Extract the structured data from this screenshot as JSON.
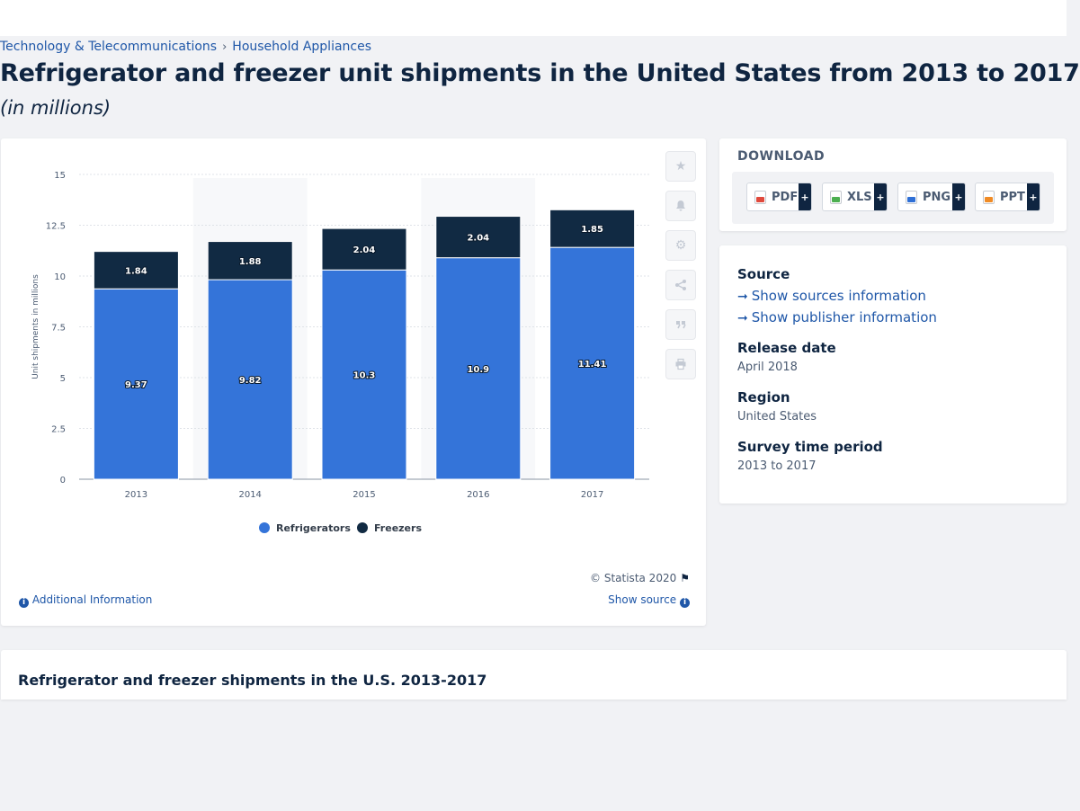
{
  "breadcrumb": {
    "category": "Technology & Telecommunications",
    "separator": "›",
    "subcategory": "Household Appliances"
  },
  "page": {
    "title": "Refrigerator and freezer unit shipments in the United States from 2013 to 2017",
    "subtitle": "(in millions)"
  },
  "chart_data": {
    "type": "bar",
    "stacked": true,
    "categories": [
      "2013",
      "2014",
      "2015",
      "2016",
      "2017"
    ],
    "series": [
      {
        "name": "Refrigerators",
        "color": "#3474d9",
        "values": [
          9.37,
          9.82,
          10.3,
          10.9,
          11.41
        ],
        "labels": [
          "9.37",
          "9.82",
          "10.3",
          "10.9",
          "11.41"
        ]
      },
      {
        "name": "Freezers",
        "color": "#112a43",
        "values": [
          1.84,
          1.88,
          2.04,
          2.04,
          1.85
        ],
        "labels": [
          "1.84",
          "1.88",
          "2.04",
          "2.04",
          "1.85"
        ]
      }
    ],
    "ylabel": "Unit shipments in millions",
    "ylim": [
      0,
      15
    ],
    "yticks": [
      0,
      2.5,
      5,
      7.5,
      10,
      12.5,
      15
    ],
    "ytick_labels": [
      "0",
      "2.5",
      "5",
      "7.5",
      "10",
      "12.5",
      "15"
    ],
    "grid": true,
    "legend_position": "bottom-center"
  },
  "chart_footer": {
    "copyright": "© Statista 2020",
    "additional_info": "Additional Information",
    "show_source": "Show source"
  },
  "tools": [
    "star-icon",
    "bell-icon",
    "gear-icon",
    "share-icon",
    "quote-icon",
    "print-icon"
  ],
  "download": {
    "title": "DOWNLOAD",
    "buttons": [
      {
        "label": "PDF",
        "plus": "+"
      },
      {
        "label": "XLS",
        "plus": "+"
      },
      {
        "label": "PNG",
        "plus": "+"
      },
      {
        "label": "PPT",
        "plus": "+"
      }
    ]
  },
  "source_info": {
    "source_label": "Source",
    "show_sources": "Show sources information",
    "show_publisher": "Show publisher information",
    "release_label": "Release date",
    "release_value": "April 2018",
    "region_label": "Region",
    "region_value": "United States",
    "period_label": "Survey time period",
    "period_value": "2013 to 2017"
  },
  "related": {
    "title": "Refrigerator and freezer shipments in the U.S. 2013-2017"
  }
}
